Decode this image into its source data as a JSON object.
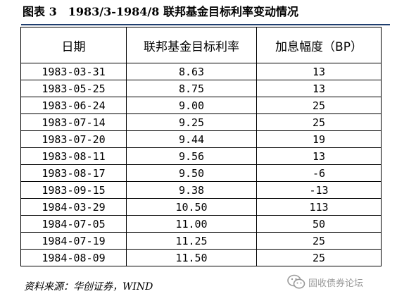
{
  "header": {
    "label": "图表 3",
    "period": "1983/3-1984/8",
    "title": "联邦基金目标利率变动情况"
  },
  "table": {
    "columns": [
      "日期",
      "联邦基金目标利率",
      "加息幅度（BP）"
    ],
    "rows": [
      [
        "1983-03-31",
        "8.63",
        "13"
      ],
      [
        "1983-05-25",
        "8.75",
        "13"
      ],
      [
        "1983-06-24",
        "9.00",
        "25"
      ],
      [
        "1983-07-14",
        "9.25",
        "25"
      ],
      [
        "1983-07-20",
        "9.44",
        "19"
      ],
      [
        "1983-08-11",
        "9.56",
        "13"
      ],
      [
        "1983-08-17",
        "9.50",
        "-6"
      ],
      [
        "1983-09-15",
        "9.38",
        "-13"
      ],
      [
        "1984-03-29",
        "10.50",
        "113"
      ],
      [
        "1984-07-05",
        "11.00",
        "50"
      ],
      [
        "1984-07-19",
        "11.25",
        "25"
      ],
      [
        "1984-08-09",
        "11.50",
        "25"
      ]
    ]
  },
  "source": "资料来源：华创证券，WIND",
  "watermark": {
    "icon": "wechat-icon",
    "text": "固收债券论坛"
  },
  "colors": {
    "rule": "#1f3e6e",
    "watermark": "#9a9a9a"
  }
}
